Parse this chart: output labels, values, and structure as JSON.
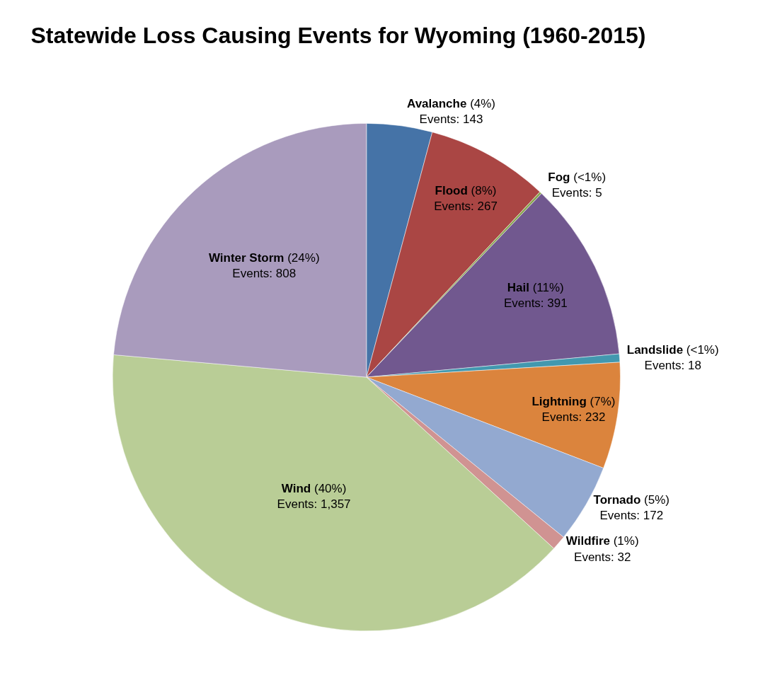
{
  "chart_data": {
    "type": "pie",
    "title": "Statewide Loss Causing Events for Wyoming (1960-2015)",
    "categories": [
      "Avalanche",
      "Flood",
      "Fog",
      "Hail",
      "Landslide",
      "Lightning",
      "Tornado",
      "Wildfire",
      "Wind",
      "Winter Storm"
    ],
    "values": [
      143,
      267,
      5,
      391,
      18,
      232,
      172,
      32,
      1357,
      808
    ],
    "value_labels": [
      "(4%)\nEvents: 143",
      "(8%)\nEvents: 267",
      "(<1%)\nEvents: 5",
      "(11%)\nEvents: 391",
      "(<1%)\nEvents: 18",
      "(7%)\nEvents: 232",
      "(5%)\nEvents: 172",
      "(1%)\nEvents: 32",
      "(40%)\nEvents: 1,357",
      "(24%)\nEvents: 808"
    ],
    "colors": [
      "#4573a7",
      "#aa4644",
      "#89a54e",
      "#71588f",
      "#4298af",
      "#db843d",
      "#93a9d0",
      "#d09392",
      "#b9cd96",
      "#a99bbd"
    ],
    "legend": false
  }
}
